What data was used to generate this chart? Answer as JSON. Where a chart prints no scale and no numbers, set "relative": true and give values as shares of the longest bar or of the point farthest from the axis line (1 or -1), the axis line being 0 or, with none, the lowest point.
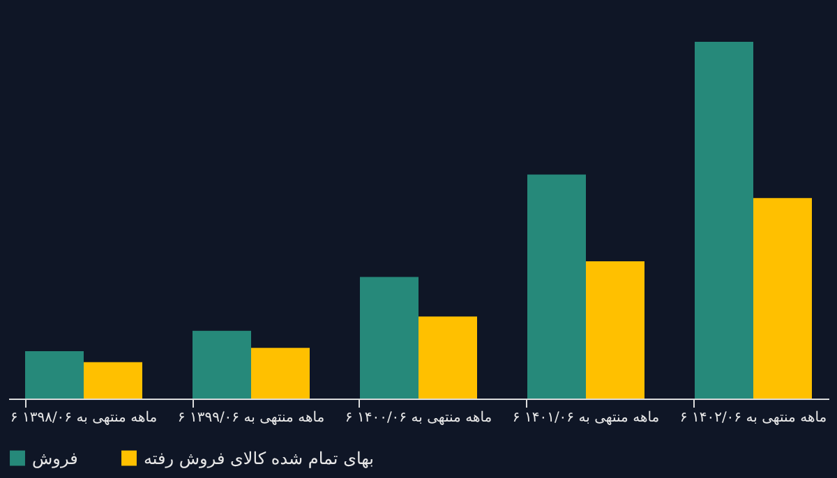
{
  "chart_data": {
    "type": "bar",
    "relative": true,
    "legend": "bottom",
    "categories": [
      "۶ ماهه منتهی به ۱۳۹۸/۰۶",
      "۶ ماهه منتهی به ۱۳۹۹/۰۶",
      "۶ ماهه منتهی به ۱۴۰۰/۰۶",
      "۶ ماهه منتهی به ۱۴۰۱/۰۶",
      "۶ ماهه منتهی به ۱۴۰۲/۰۶"
    ],
    "series": [
      {
        "name": "فروش",
        "color": "#26897a",
        "values": [
          0.133,
          0.19,
          0.341,
          0.628,
          1
        ]
      },
      {
        "name": "بهای تمام شده کالای فروش رفته",
        "color": "#ffc000",
        "values": [
          0.102,
          0.142,
          0.23,
          0.385,
          0.562
        ]
      }
    ]
  }
}
